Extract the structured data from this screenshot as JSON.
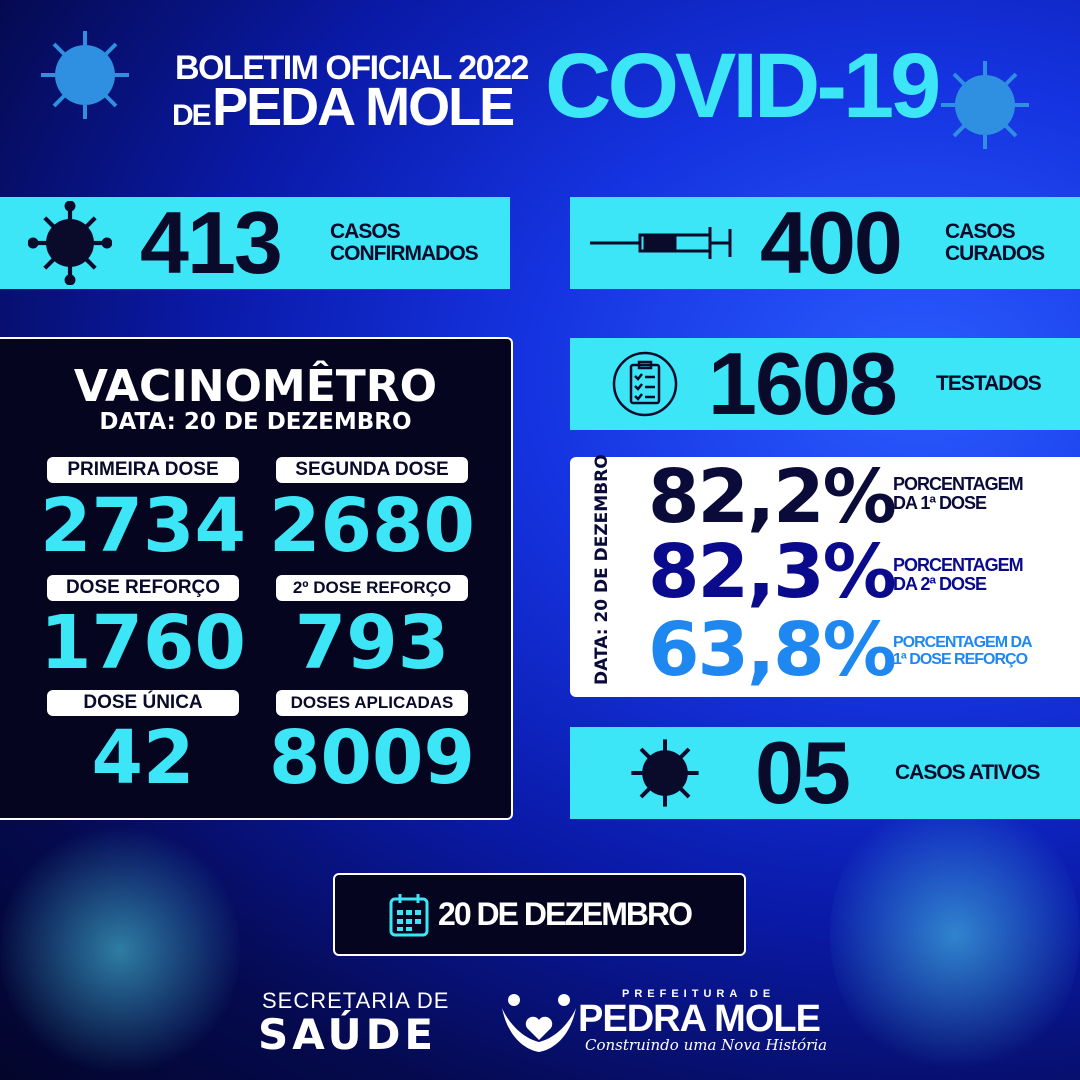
{
  "header": {
    "line1": "BOLETIM OFICIAL 2022",
    "line2_prefix": "DE",
    "line2_main": "PEDA MOLE",
    "covid": "COVID-19"
  },
  "confirmed": {
    "value": "413",
    "label1": "CASOS",
    "label2": "CONFIRMADOS",
    "icon": "virus-icon"
  },
  "cured": {
    "value": "400",
    "label1": "CASOS",
    "label2": "CURADOS",
    "icon": "syringe-icon"
  },
  "tested": {
    "value": "1608",
    "label": "TESTADOS",
    "icon": "clipboard-icon"
  },
  "vaccinometer": {
    "title": "VACINOMÊTRO",
    "date": "DATA: 20 DE DEZEMBRO",
    "items": [
      {
        "label": "PRIMEIRA DOSE",
        "value": "2734"
      },
      {
        "label": "SEGUNDA DOSE",
        "value": "2680"
      },
      {
        "label": "DOSE REFORÇO",
        "value": "1760"
      },
      {
        "label": "2º DOSE REFORÇO",
        "value": "793"
      },
      {
        "label": "DOSE ÚNICA",
        "value": "42"
      },
      {
        "label": "DOSES APLICADAS",
        "value": "8009"
      }
    ]
  },
  "percentages": {
    "date": "DATA: 20 DE DEZEMBRO",
    "items": [
      {
        "value": "82,2%",
        "label1": "PORCENTAGEM",
        "label2": "DA 1ª DOSE",
        "color": "#0b0b3a"
      },
      {
        "value": "82,3%",
        "label1": "PORCENTAGEM",
        "label2": "DA 2ª DOSE",
        "color": "#0a0a8c"
      },
      {
        "value": "63,8%",
        "label1": "PORCENTAGEM DA",
        "label2": "1ª DOSE REFORÇO",
        "color": "#1e88f0"
      }
    ]
  },
  "active": {
    "value": "05",
    "label": "CASOS ATIVOS",
    "icon": "virus-icon"
  },
  "date_badge": {
    "text": "20 DE DEZEMBRO",
    "icon": "calendar-icon"
  },
  "footer": {
    "secretaria": "SECRETARIA DE",
    "saude": "SAÚDE",
    "logo_top": "PREFEITURA DE",
    "logo_main": "PEDRA MOLE",
    "logo_slogan": "Construindo uma Nova História"
  },
  "colors": {
    "accent": "#3de6f6",
    "dark": "#0a0a2a"
  }
}
